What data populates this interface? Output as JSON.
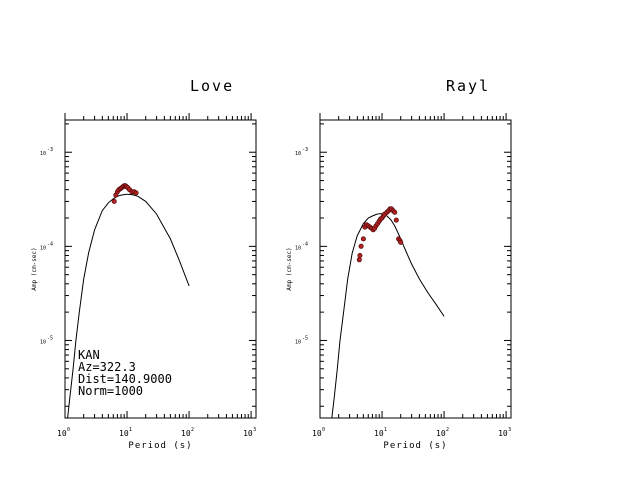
{
  "chart_data": [
    {
      "type": "line",
      "title": "Love",
      "xlabel": "Period (s)",
      "ylabel": "Amp (cm-sec)",
      "xscale": "log",
      "yscale": "log",
      "xlim": [
        1,
        1200
      ],
      "ylim": [
        1.5e-06,
        0.0022
      ],
      "x_ticks": [
        {
          "base": "10",
          "exp": "0",
          "value": 1
        },
        {
          "base": "10",
          "exp": "1",
          "value": 10
        },
        {
          "base": "10",
          "exp": "2",
          "value": 100
        },
        {
          "base": "10",
          "exp": "3",
          "value": 1000
        }
      ],
      "y_ticks": [
        {
          "base": "10",
          "exp": "-5",
          "value": 1e-05
        },
        {
          "base": "10",
          "exp": "-4",
          "value": 0.0001
        },
        {
          "base": "10",
          "exp": "-3",
          "value": 0.001
        }
      ],
      "model": {
        "x": [
          1.1,
          1.2,
          1.35,
          1.5,
          1.7,
          2.0,
          2.4,
          3.0,
          4.0,
          5.0,
          6.0,
          7.0,
          8.0,
          9.0,
          10.0,
          12.0,
          15.0,
          20.0,
          30.0,
          50.0,
          70.0,
          100.0
        ],
        "y": [
          1.5e-06,
          2.5e-06,
          5e-06,
          1e-05,
          2e-05,
          4.5e-05,
          8.5e-05,
          0.00015,
          0.00024,
          0.00029,
          0.00032,
          0.00034,
          0.00035,
          0.000355,
          0.000358,
          0.000355,
          0.00034,
          0.0003,
          0.00022,
          0.00012,
          7e-05,
          3.8e-05
        ]
      },
      "observed": {
        "x": [
          6.2,
          6.6,
          7.0,
          7.4,
          7.8,
          8.2,
          8.6,
          9.0,
          9.4,
          9.8,
          10.3,
          11.0,
          12.0,
          13.0,
          14.0
        ],
        "y": [
          0.0003,
          0.00035,
          0.00038,
          0.0004,
          0.00041,
          0.00042,
          0.00043,
          0.00044,
          0.00044,
          0.00043,
          0.00042,
          0.0004,
          0.00038,
          0.00038,
          0.00037
        ]
      }
    },
    {
      "type": "line",
      "title": "Rayl",
      "xlabel": "Period (s)",
      "ylabel": "Amp (cm-sec)",
      "xscale": "log",
      "yscale": "log",
      "xlim": [
        1,
        1200
      ],
      "ylim": [
        1.5e-06,
        0.0022
      ],
      "x_ticks": [
        {
          "base": "10",
          "exp": "0",
          "value": 1
        },
        {
          "base": "10",
          "exp": "1",
          "value": 10
        },
        {
          "base": "10",
          "exp": "2",
          "value": 100
        },
        {
          "base": "10",
          "exp": "3",
          "value": 1000
        }
      ],
      "y_ticks": [
        {
          "base": "10",
          "exp": "-5",
          "value": 1e-05
        },
        {
          "base": "10",
          "exp": "-4",
          "value": 0.0001
        },
        {
          "base": "10",
          "exp": "-3",
          "value": 0.001
        }
      ],
      "model": {
        "x": [
          1.55,
          1.7,
          1.9,
          2.1,
          2.4,
          2.8,
          3.3,
          4.0,
          5.0,
          6.0,
          7.0,
          8.0,
          9.0,
          10.0,
          11.0,
          12.0,
          13.0,
          14.0,
          16.0,
          18.0,
          20.0,
          25.0,
          30.0,
          40.0,
          55.0,
          75.0,
          100.0
        ],
        "y": [
          1.5e-06,
          2.5e-06,
          5e-06,
          1e-05,
          2e-05,
          4.5e-05,
          8.5e-05,
          0.00013,
          0.000175,
          0.0002,
          0.00021,
          0.000218,
          0.000222,
          0.000222,
          0.000218,
          0.00021,
          0.0002,
          0.00019,
          0.000165,
          0.00014,
          0.00012,
          8.5e-05,
          6.5e-05,
          4.5e-05,
          3.2e-05,
          2.4e-05,
          1.8e-05
        ]
      },
      "observed": {
        "x": [
          4.3,
          4.4,
          4.6,
          5.0,
          5.3,
          5.6,
          6.0,
          6.4,
          6.8,
          7.2,
          7.6,
          8.0,
          8.5,
          9.0,
          9.5,
          10.0,
          10.5,
          11.0,
          12.0,
          12.8,
          13.5,
          14.2,
          15.0,
          16.0,
          17.0,
          18.5,
          19.5,
          20.0
        ],
        "y": [
          7.2e-05,
          8e-05,
          0.0001,
          0.00012,
          0.00016,
          0.00017,
          0.000165,
          0.00016,
          0.000155,
          0.00015,
          0.000155,
          0.000165,
          0.000175,
          0.000185,
          0.000195,
          0.0002,
          0.00021,
          0.00022,
          0.00023,
          0.00024,
          0.00025,
          0.00025,
          0.00024,
          0.00023,
          0.00019,
          0.00012,
          0.000115,
          0.00011
        ]
      }
    }
  ],
  "station": {
    "name": "KAN",
    "azimuth": "Az=322.3",
    "distance": "Dist=140.9000",
    "norm": "Norm=1000"
  }
}
